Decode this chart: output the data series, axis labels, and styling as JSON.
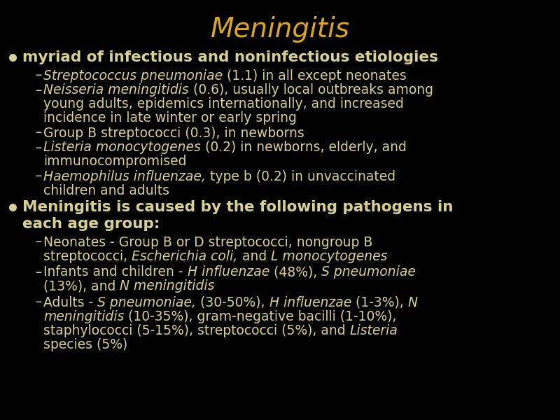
{
  "title": "Meningitis",
  "title_color": "#DAA520",
  "background_color": "#000000",
  "body_color": "#D8D090",
  "title_fontsize": 28,
  "b1_fontsize": 15.5,
  "sub_fontsize": 13.5,
  "figsize": [
    8.0,
    6.0
  ],
  "dpi": 100,
  "items": {
    "bullet1": "myriad of infectious and noninfectious etiologies",
    "sub1": [
      [
        [
          [
            "italic",
            "Streptococcus pneumoniae"
          ],
          [
            "normal",
            " (1.1) in all except neonates"
          ]
        ]
      ],
      [
        [
          [
            "italic",
            "Neisseria meningitidis"
          ],
          [
            "normal",
            " (0.6), usually local outbreaks among"
          ]
        ],
        [
          [
            "normal",
            "young adults, epidemics internationally, and increased"
          ]
        ],
        [
          [
            "normal",
            "incidence in late winter or early spring"
          ]
        ]
      ],
      [
        [
          [
            "normal",
            "Group B streptococci (0.3), in newborns"
          ]
        ]
      ],
      [
        [
          [
            "italic",
            "Listeria monocytogenes"
          ],
          [
            "normal",
            " (0.2) in newborns, elderly, and"
          ]
        ],
        [
          [
            "normal",
            "immunocompromised"
          ]
        ]
      ],
      [
        [
          [
            "italic",
            "Haemophilus influenzae,"
          ],
          [
            "normal",
            " type b (0.2) in unvaccinated"
          ]
        ],
        [
          [
            "normal",
            "children and adults"
          ]
        ]
      ]
    ],
    "bullet2_lines": [
      "Meningitis is caused by the following pathogens in",
      "each age group:"
    ],
    "sub2": [
      [
        [
          [
            "normal",
            "Neonates - Group B or D streptococci, nongroup B"
          ]
        ],
        [
          [
            "normal",
            "streptococci, "
          ],
          [
            "italic",
            "Escherichia coli,"
          ],
          [
            "normal",
            " and "
          ],
          [
            "italic",
            "L monocytogenes"
          ]
        ]
      ],
      [
        [
          [
            "normal",
            "Infants and children - "
          ],
          [
            "italic",
            "H influenzae"
          ],
          [
            "normal",
            " (48%), "
          ],
          [
            "italic",
            "S pneumoniae"
          ]
        ],
        [
          [
            "normal",
            "(13%), and "
          ],
          [
            "italic",
            "N meningitidis"
          ]
        ]
      ],
      [
        [
          [
            "normal",
            "Adults - "
          ],
          [
            "italic",
            "S pneumoniae,"
          ],
          [
            "normal",
            " (30-50%), "
          ],
          [
            "italic",
            "H influenzae"
          ],
          [
            "normal",
            " (1-3%), "
          ],
          [
            "italic",
            "N"
          ]
        ],
        [
          [
            "italic",
            "meningitidis"
          ],
          [
            "normal",
            " (10-35%), gram-negative bacilli (1-10%),"
          ]
        ],
        [
          [
            "normal",
            "staphylococci (5-15%), streptococci (5%), and "
          ],
          [
            "italic",
            "Listeria"
          ]
        ],
        [
          [
            "normal",
            "species (5%)"
          ]
        ]
      ]
    ]
  }
}
